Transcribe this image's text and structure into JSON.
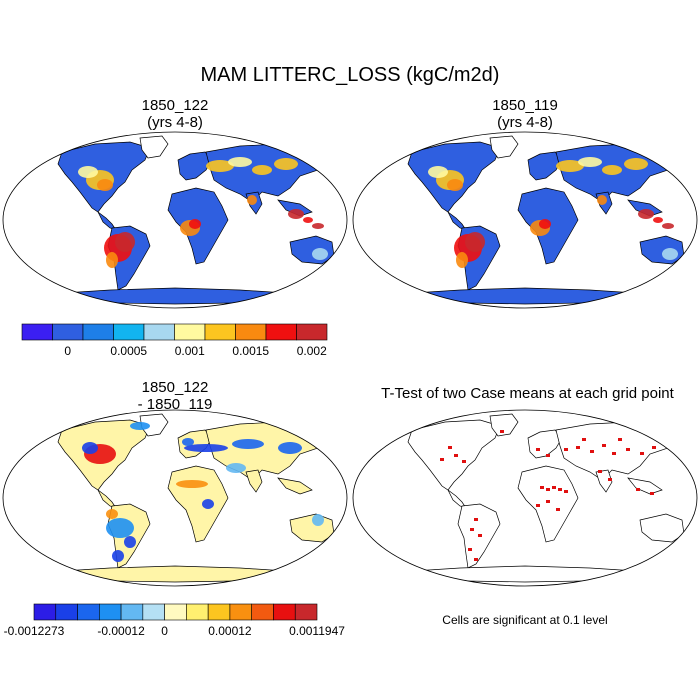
{
  "figure": {
    "title": "MAM LITTERC_LOSS (kgC/m2d)"
  },
  "panels": [
    {
      "id": "case1",
      "title_line1": "1850_122",
      "title_line2": "(yrs 4-8)"
    },
    {
      "id": "case2",
      "title_line1": "1850_119",
      "title_line2": "(yrs 4-8)"
    },
    {
      "id": "diff",
      "title_line1": "1850_122",
      "title_line2": "- 1850_119"
    },
    {
      "id": "ttest",
      "title_line1": "T-Test of two Case means at each grid point",
      "title_line2": ""
    }
  ],
  "colorbar_main": {
    "colors": [
      "#3b1ff2",
      "#2f5fe0",
      "#1e7fe8",
      "#12b4f0",
      "#a8d8f0",
      "#fffaa0",
      "#fcc520",
      "#f98a10",
      "#f01010",
      "#c8282c"
    ],
    "tick_labels": [
      "0",
      "0.0005",
      "0.001",
      "0.0015",
      "0.002"
    ]
  },
  "colorbar_diff": {
    "colors": [
      "#2c1de6",
      "#1a40e8",
      "#1b66ee",
      "#1e90f2",
      "#63b8f2",
      "#b5e0f4",
      "#fffac0",
      "#fff070",
      "#fcc520",
      "#f99010",
      "#f25a10",
      "#e81010",
      "#c8282c"
    ],
    "tick_labels": [
      "-0.0012273",
      "-0.00012",
      "0",
      "0.00012",
      "0.0011947"
    ]
  },
  "ttest_note": "Cells are significant at 0.1 level",
  "colors": {
    "ocean": "#ffffff",
    "land_low": "#2f5fe0",
    "tropics_high": "#e0302a",
    "diff_land": "#fff5a8",
    "signif": "#e01010"
  }
}
